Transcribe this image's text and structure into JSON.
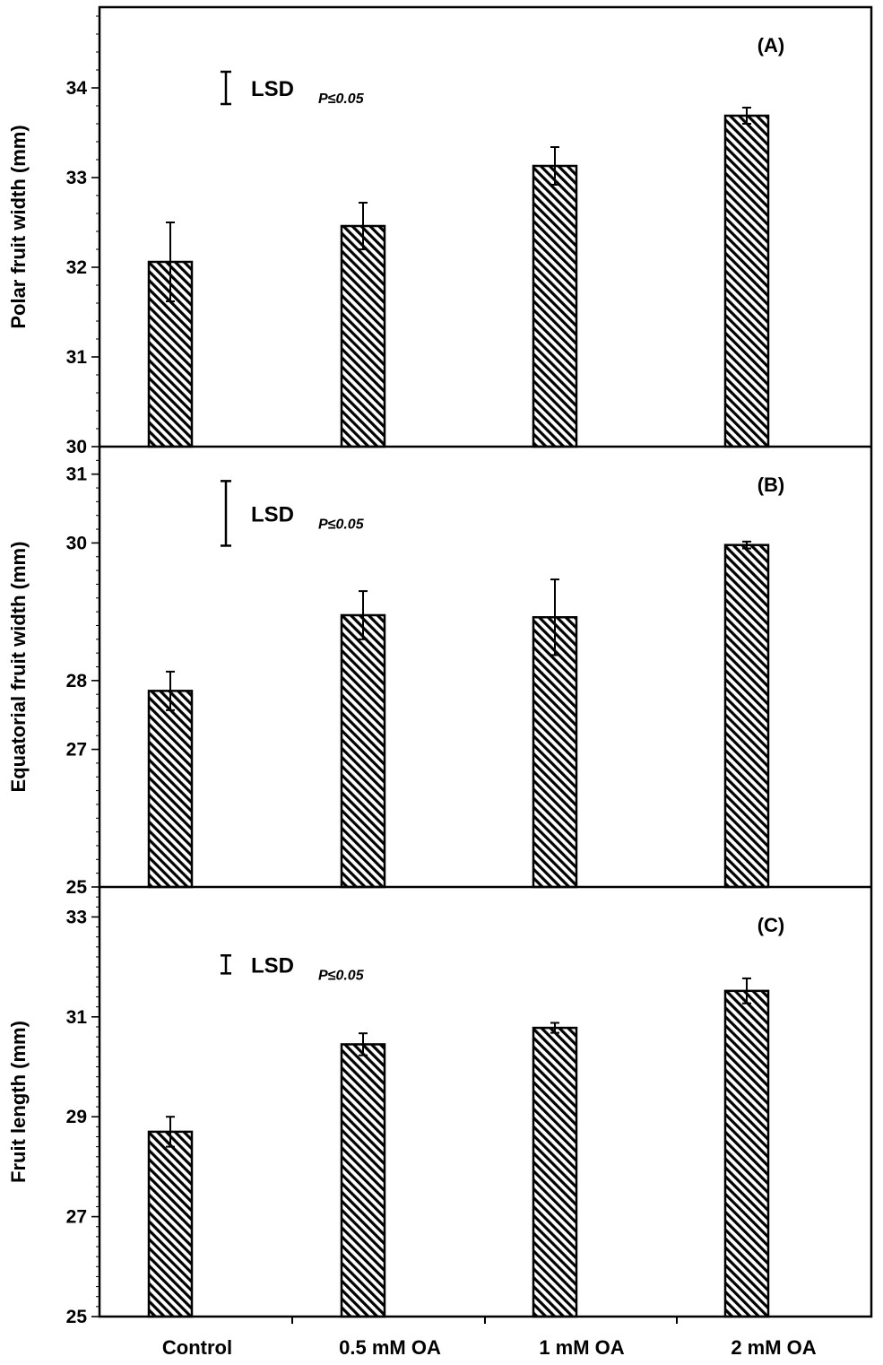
{
  "categories": [
    "Control",
    "0.5 mM OA",
    "1 mM OA",
    "2 mM OA"
  ],
  "chart_data": [
    {
      "type": "bar",
      "panel_label": "(A)",
      "ylabel": "Polar fruit width (mm)",
      "ylim": [
        30,
        34.9
      ],
      "yticks": [
        30,
        31,
        32,
        33,
        34
      ],
      "ytick_labels": [
        "30",
        "31",
        "32",
        "33",
        "34"
      ],
      "values": [
        32.06,
        32.46,
        33.13,
        33.69
      ],
      "errors": [
        0.44,
        0.26,
        0.21,
        0.09
      ],
      "lsd": {
        "center": 34.0,
        "half": 0.18,
        "label": "LSD",
        "subscript": "P≤0.05"
      }
    },
    {
      "type": "bar",
      "panel_label": "(B)",
      "ylabel": "Equatorial fruit width (mm)",
      "ylim": [
        25,
        31.4
      ],
      "yticks": [
        25,
        27,
        28,
        30,
        31
      ],
      "ytick_labels": [
        "25",
        "27",
        "28",
        "30",
        "31"
      ],
      "values": [
        27.85,
        28.95,
        28.92,
        29.97
      ],
      "errors": [
        0.28,
        0.35,
        0.55,
        0.05
      ],
      "lsd": {
        "center": 30.43,
        "half": 0.47,
        "label": "LSD",
        "subscript": "P≤0.05"
      }
    },
    {
      "type": "bar",
      "panel_label": "(C)",
      "ylabel": "Fruit length (mm)",
      "ylim": [
        25,
        33.6
      ],
      "yticks": [
        25,
        27,
        29,
        31,
        33
      ],
      "ytick_labels": [
        "25",
        "27",
        "29",
        "31",
        "33"
      ],
      "values": [
        28.7,
        30.45,
        30.78,
        31.52
      ],
      "errors": [
        0.3,
        0.22,
        0.1,
        0.25
      ],
      "lsd": {
        "center": 32.05,
        "half": 0.18,
        "label": "LSD",
        "subscript": "P≤0.05"
      }
    }
  ]
}
